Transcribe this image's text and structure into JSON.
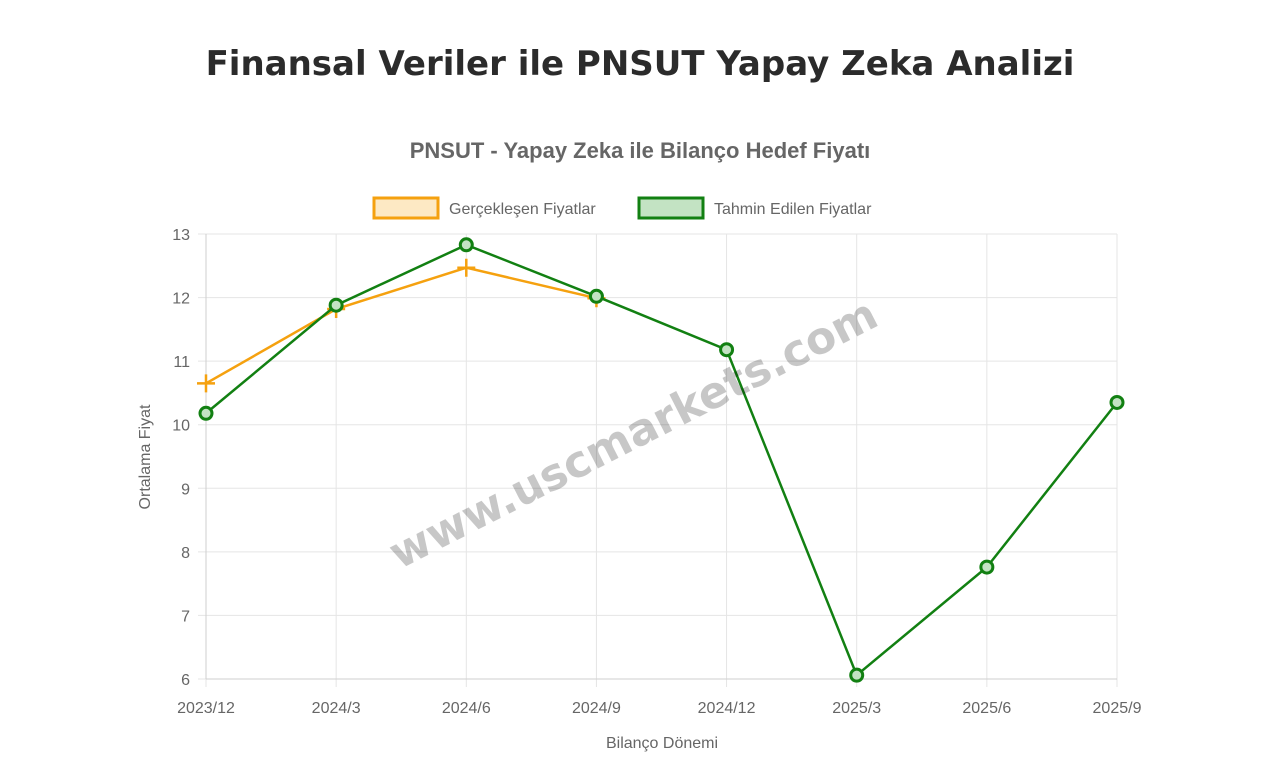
{
  "page": {
    "title": "Finansal Veriler ile PNSUT Yapay Zeka Analizi"
  },
  "watermark": "www.uscmarkets.com",
  "colors": {
    "actual": "#f5a10f",
    "predicted": "#128012",
    "grid": "#e5e5e5",
    "text": "#666666"
  },
  "chart_data": {
    "type": "line",
    "title": "PNSUT - Yapay Zeka ile Bilanço Hedef Fiyatı",
    "xlabel": "Bilanço Dönemi",
    "ylabel": "Ortalama Fiyat",
    "ylim": [
      6,
      13
    ],
    "yticks": [
      6,
      7,
      8,
      9,
      10,
      11,
      12,
      13
    ],
    "grid": true,
    "legend": "top",
    "categories": [
      "2023/12",
      "2024/3",
      "2024/6",
      "2024/9",
      "2024/12",
      "2025/3",
      "2025/6",
      "2025/9"
    ],
    "series": [
      {
        "name": "Gerçekleşen Fiyatlar",
        "marker": "cross",
        "color": "#f5a10f",
        "fill": "#fde9c4",
        "values": [
          10.65,
          11.82,
          12.47,
          11.99,
          null,
          null,
          null,
          null
        ]
      },
      {
        "name": "Tahmin Edilen Fiyatlar",
        "marker": "circle",
        "color": "#128012",
        "fill": "#c3e3c3",
        "values": [
          10.18,
          11.88,
          12.83,
          12.02,
          11.18,
          6.06,
          7.76,
          10.35
        ]
      }
    ]
  }
}
